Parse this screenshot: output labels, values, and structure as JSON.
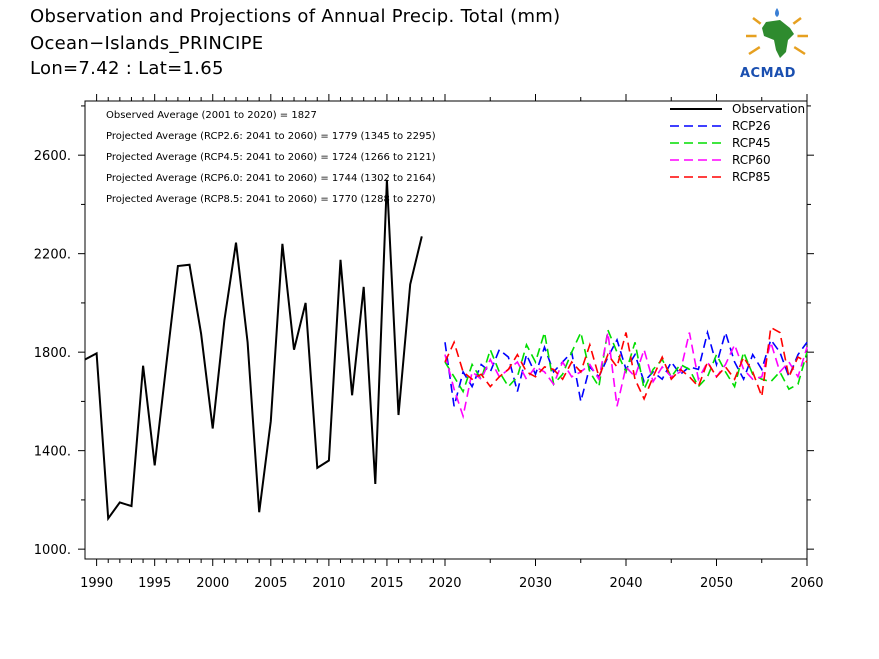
{
  "header": {
    "title": "Observation and Projections of Annual Precip. Total (mm)",
    "location": "Ocean−Islands_PRINCIPE",
    "coords": "Lon=7.42 : Lat=1.65"
  },
  "logo": {
    "text": "ACMAD",
    "icon": "africa-map-logo"
  },
  "colors": {
    "observation": "#000000",
    "rcp26": "#0000ff",
    "rcp45": "#00dd00",
    "rcp60": "#ff00ff",
    "rcp85": "#ff0000"
  },
  "chart_data": {
    "type": "line",
    "title": "Observation and Projections of Annual Precip. Total (mm)",
    "xlabel": "",
    "ylabel": "",
    "ylim": [
      960,
      2820
    ],
    "xticks": [
      1990,
      1995,
      2000,
      2005,
      2010,
      2015,
      2020,
      2030,
      2040,
      2050,
      2060
    ],
    "xtick_labels": [
      "1990",
      "1995",
      "2000",
      "2005",
      "2010",
      "2015",
      "2020",
      "2030",
      "2040",
      "2050",
      "2060"
    ],
    "yticks": [
      1000,
      1400,
      1800,
      2200,
      2600
    ],
    "ytick_labels": [
      "1000.",
      "1400.",
      "1800.",
      "2200.",
      "2600."
    ],
    "annotations": [
      "Observed Average (2001 to 2020) = 1827",
      "Projected Average (RCP2.6: 2041 to 2060) = 1779 (1345 to 2295)",
      "Projected Average (RCP4.5: 2041 to 2060) = 1724 (1266 to 2121)",
      "Projected Average (RCP6.0: 2041 to 2060) = 1744 (1302 to 2164)",
      "Projected Average (RCP8.5: 2041 to 2060) = 1770 (1288 to 2270)"
    ],
    "legend": [
      "Observation",
      "RCP26",
      "RCP45",
      "RCP60",
      "RCP85"
    ],
    "legend_position": "top-right",
    "grid": false,
    "series": [
      {
        "name": "Observation",
        "style": "solid",
        "x": [
          1989,
          1990,
          1991,
          1992,
          1993,
          1994,
          1995,
          1996,
          1997,
          1998,
          1999,
          2000,
          2001,
          2002,
          2003,
          2004,
          2005,
          2006,
          2007,
          2008,
          2009,
          2010,
          2011,
          2012,
          2013,
          2014,
          2015,
          2016,
          2017,
          2018,
          2019
        ],
        "y": [
          1770,
          1795,
          1125,
          1190,
          1175,
          1745,
          1340,
          1750,
          2150,
          2155,
          1875,
          1490,
          1930,
          2245,
          1840,
          1150,
          1520,
          2240,
          1810,
          2000,
          1330,
          1360,
          2175,
          1625,
          2065,
          1265,
          2500,
          1545,
          2075,
          2270,
          null
        ]
      },
      {
        "name": "RCP26",
        "style": "dashed",
        "x": [
          2020,
          2021,
          2022,
          2023,
          2024,
          2025,
          2026,
          2027,
          2028,
          2029,
          2030,
          2031,
          2032,
          2033,
          2034,
          2035,
          2036,
          2037,
          2038,
          2039,
          2040,
          2041,
          2042,
          2043,
          2044,
          2045,
          2046,
          2047,
          2048,
          2049,
          2050,
          2051,
          2052,
          2053,
          2054,
          2055,
          2056,
          2057,
          2058,
          2059,
          2060
        ],
        "y": [
          1840,
          1580,
          1720,
          1660,
          1750,
          1720,
          1810,
          1780,
          1640,
          1790,
          1710,
          1820,
          1720,
          1760,
          1800,
          1600,
          1740,
          1700,
          1780,
          1850,
          1730,
          1790,
          1680,
          1720,
          1690,
          1760,
          1710,
          1740,
          1730,
          1880,
          1750,
          1880,
          1760,
          1690,
          1790,
          1730,
          1850,
          1800,
          1700,
          1790,
          1840
        ]
      },
      {
        "name": "RCP45",
        "style": "dashed",
        "x": [
          2020,
          2021,
          2022,
          2023,
          2024,
          2025,
          2026,
          2027,
          2028,
          2029,
          2030,
          2031,
          2032,
          2033,
          2034,
          2035,
          2036,
          2037,
          2038,
          2039,
          2040,
          2041,
          2042,
          2043,
          2044,
          2045,
          2046,
          2047,
          2048,
          2049,
          2050,
          2051,
          2052,
          2053,
          2054,
          2055,
          2056,
          2057,
          2058,
          2059,
          2060
        ],
        "y": [
          1760,
          1700,
          1640,
          1750,
          1690,
          1810,
          1720,
          1660,
          1700,
          1830,
          1760,
          1880,
          1670,
          1710,
          1800,
          1880,
          1720,
          1660,
          1890,
          1800,
          1720,
          1840,
          1650,
          1730,
          1770,
          1700,
          1750,
          1730,
          1660,
          1700,
          1790,
          1720,
          1660,
          1800,
          1710,
          1690,
          1680,
          1720,
          1650,
          1670,
          1800
        ]
      },
      {
        "name": "RCP60",
        "style": "dashed",
        "x": [
          2020,
          2021,
          2022,
          2023,
          2024,
          2025,
          2026,
          2027,
          2028,
          2029,
          2030,
          2031,
          2032,
          2033,
          2034,
          2035,
          2036,
          2037,
          2038,
          2039,
          2040,
          2041,
          2042,
          2043,
          2044,
          2045,
          2046,
          2047,
          2048,
          2049,
          2050,
          2051,
          2052,
          2053,
          2054,
          2055,
          2056,
          2057,
          2058,
          2059,
          2060
        ],
        "y": [
          1790,
          1650,
          1540,
          1720,
          1690,
          1770,
          1700,
          1730,
          1760,
          1690,
          1740,
          1720,
          1670,
          1760,
          1700,
          1720,
          1750,
          1690,
          1880,
          1580,
          1740,
          1700,
          1810,
          1680,
          1740,
          1700,
          1720,
          1880,
          1690,
          1760,
          1700,
          1750,
          1830,
          1730,
          1690,
          1700,
          1840,
          1720,
          1760,
          1700,
          1820
        ]
      },
      {
        "name": "RCP85",
        "style": "dashed",
        "x": [
          2020,
          2021,
          2022,
          2023,
          2024,
          2025,
          2026,
          2027,
          2028,
          2029,
          2030,
          2031,
          2032,
          2033,
          2034,
          2035,
          2036,
          2037,
          2038,
          2039,
          2040,
          2041,
          2042,
          2043,
          2044,
          2045,
          2046,
          2047,
          2048,
          2049,
          2050,
          2051,
          2052,
          2053,
          2054,
          2055,
          2056,
          2057,
          2058,
          2059,
          2060
        ],
        "y": [
          1760,
          1840,
          1720,
          1690,
          1710,
          1660,
          1700,
          1730,
          1790,
          1720,
          1700,
          1740,
          1730,
          1690,
          1760,
          1720,
          1830,
          1700,
          1790,
          1740,
          1880,
          1690,
          1610,
          1700,
          1780,
          1690,
          1730,
          1700,
          1660,
          1760,
          1700,
          1740,
          1690,
          1780,
          1720,
          1620,
          1900,
          1880,
          1700,
          1780,
          1760
        ]
      }
    ]
  }
}
